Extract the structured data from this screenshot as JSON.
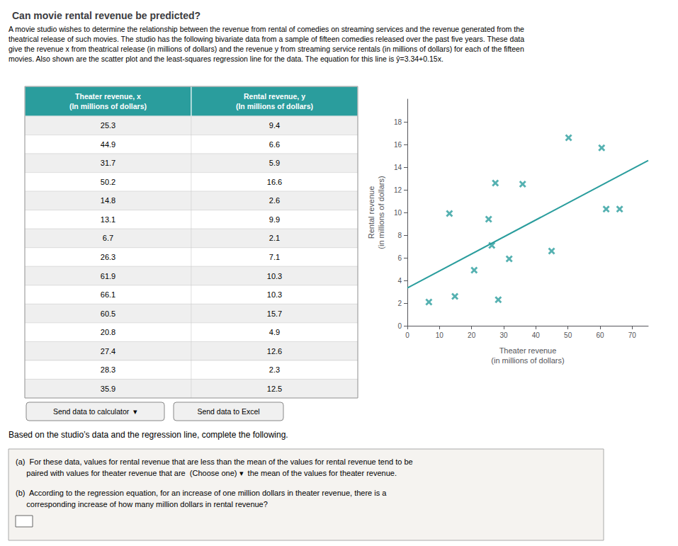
{
  "chart_data": {
    "type": "scatter",
    "title": "Can movie rental revenue be predicted?",
    "subtitle": "A movie studio wishes to determine the relationship between the revenue from rental of comedies on streaming services and the revenue generated from the\ntheatrical release of such movies. The studio has the following bivariate data from a sample of fifteen comedies released over the past five years. These data\ngive the revenue x from theatrical release (in millions of dollars) and the revenue y from streaming service rentals (in millions of dollars) for each of the fifteen\nmovies. Also shown are the scatter plot and the least-squares regression line for the data. The equation for this line is ŷ=3.34+0.15x.",
    "table_headers": [
      "Theater revenue, x\n(In millions of dollars)",
      "Rental revenue, y\n(In millions of dollars)"
    ],
    "buttons": [
      "Send data to calculator  ▾",
      "Send data to Excel"
    ],
    "annotations": [
      "Based on the studio’s data and the regression line, complete the following.",
      "(a)  For these data, values for rental revenue that are less than the mean of the values for rental revenue tend to be",
      "     paired with values for theater revenue that are  (Choose one) ▾  the mean of the values for theater revenue.",
      "(b)  According to the regression equation, for an increase of one million dollars in theater revenue, there is a",
      "     corresponding increase of how many million dollars in rental revenue?"
    ],
    "series": [
      {
        "type": "scatter",
        "color": "#2a9d9d",
        "marker": "x",
        "x": [
          25.3,
          44.9,
          31.7,
          50.2,
          14.8,
          13.1,
          6.7,
          26.3,
          61.9,
          66.1,
          60.5,
          20.8,
          27.4,
          28.3,
          35.9
        ],
        "values": [
          9.4,
          6.6,
          5.9,
          16.6,
          2.6,
          9.9,
          2.1,
          7.1,
          10.3,
          10.3,
          15.7,
          4.9,
          12.6,
          2.3,
          12.5
        ]
      },
      {
        "type": "line",
        "color": "#2a9d9d",
        "line_style": "solid",
        "x": [
          0,
          75
        ],
        "values": [
          3.34,
          14.59
        ]
      }
    ],
    "xlabel": "Theater revenue\n(in millions of dollars)",
    "ylabel": "Rental revenue\n(in millions of dollars)",
    "xlim": [
      0,
      75
    ],
    "ylim": [
      0,
      20
    ],
    "xticks": [
      0,
      10,
      20,
      30,
      40,
      50,
      60,
      70
    ],
    "yticks": [
      0,
      2,
      4,
      6,
      8,
      10,
      12,
      14,
      16,
      18
    ],
    "grid": false
  }
}
